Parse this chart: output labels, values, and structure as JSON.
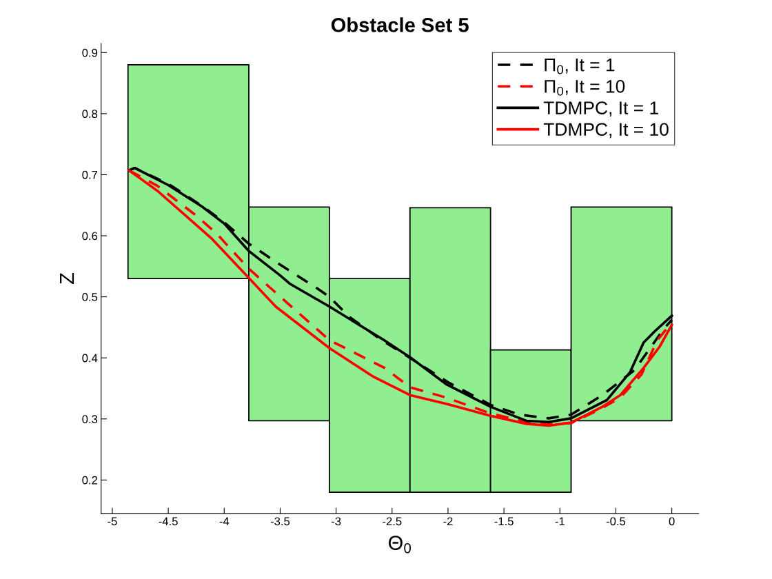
{
  "chart_data": {
    "type": "line",
    "title": "Obstacle Set 5",
    "xlabel": "Θ$_{0}$",
    "ylabel": "Z",
    "xlim": [
      -5.1,
      0.24
    ],
    "ylim": [
      0.145,
      0.915
    ],
    "xticks": [
      -5,
      -4.5,
      -4,
      -3.5,
      -3,
      -2.5,
      -2,
      -1.5,
      -1,
      -0.5,
      0
    ],
    "yticks": [
      0.2,
      0.3,
      0.4,
      0.5,
      0.6,
      0.7,
      0.8,
      0.9
    ],
    "grid": false,
    "legend": "top right",
    "series": [
      {
        "type": "area",
        "color": "#90ee90",
        "x": [
          -4.86,
          -4.86,
          -3.78,
          -3.78
        ],
        "values": [
          0.53,
          0.88,
          0.88,
          0.53
        ]
      },
      {
        "type": "area",
        "color": "#90ee90",
        "x": [
          -3.78,
          -3.78,
          -3.06,
          -3.06
        ],
        "values": [
          0.297,
          0.647,
          0.647,
          0.297
        ]
      },
      {
        "type": "area",
        "color": "#90ee90",
        "x": [
          -3.06,
          -3.06,
          -2.34,
          -2.34
        ],
        "values": [
          0.18,
          0.53,
          0.53,
          0.18
        ]
      },
      {
        "type": "area",
        "color": "#90ee90",
        "x": [
          -2.34,
          -2.34,
          -1.62,
          -1.62
        ],
        "values": [
          0.18,
          0.646,
          0.646,
          0.18
        ]
      },
      {
        "type": "area",
        "color": "#90ee90",
        "x": [
          -1.62,
          -1.62,
          -0.9,
          -0.9
        ],
        "values": [
          0.18,
          0.413,
          0.413,
          0.18
        ]
      },
      {
        "type": "area",
        "color": "#90ee90",
        "x": [
          -0.9,
          -0.9,
          0.0,
          0.0
        ],
        "values": [
          0.297,
          0.647,
          0.647,
          0.297
        ]
      },
      {
        "type": "line",
        "name": "Π$_{0}$, It = 1",
        "color": "#000000",
        "line_style": "dashed",
        "x": [
          -4.85,
          -4.8,
          -4.5,
          -4.2,
          -4.0,
          -3.78,
          -3.495,
          -3.17,
          -3.06,
          -2.88,
          -2.6,
          -2.34,
          -2.0,
          -1.62,
          -1.36,
          -1.1,
          -0.9,
          -0.62,
          -0.334,
          -0.17,
          -0.07,
          0.0
        ],
        "values": [
          0.707,
          0.711,
          0.685,
          0.649,
          0.622,
          0.587,
          0.552,
          0.514,
          0.5,
          0.467,
          0.43,
          0.4,
          0.36,
          0.323,
          0.307,
          0.301,
          0.307,
          0.339,
          0.38,
          0.422,
          0.448,
          0.462
        ]
      },
      {
        "type": "line",
        "name": "Π$_{0}$, It = 10",
        "color": "#ff0000",
        "line_style": "dashed",
        "x": [
          -4.85,
          -4.6,
          -4.25,
          -4.07,
          -3.78,
          -3.455,
          -3.06,
          -2.571,
          -2.34,
          -2.017,
          -1.62,
          -1.3,
          -1.1,
          -0.9,
          -0.64,
          -0.46,
          -0.27,
          -0.129,
          0.0
        ],
        "values": [
          0.707,
          0.682,
          0.633,
          0.604,
          0.546,
          0.493,
          0.429,
          0.384,
          0.352,
          0.335,
          0.309,
          0.295,
          0.292,
          0.293,
          0.316,
          0.335,
          0.373,
          0.429,
          0.458
        ]
      },
      {
        "type": "line",
        "name": "TDMPC, It = 1",
        "color": "#000000",
        "line_style": "solid",
        "x": [
          -4.85,
          -4.8,
          -4.5,
          -4.2,
          -4.0,
          -3.78,
          -3.5,
          -3.41,
          -3.06,
          -2.571,
          -2.34,
          -2.017,
          -1.62,
          -1.3,
          -1.1,
          -0.9,
          -0.58,
          -0.375,
          -0.252,
          -0.15,
          0.0
        ],
        "values": [
          0.707,
          0.711,
          0.683,
          0.648,
          0.62,
          0.575,
          0.535,
          0.521,
          0.484,
          0.429,
          0.401,
          0.357,
          0.32,
          0.297,
          0.295,
          0.301,
          0.331,
          0.376,
          0.425,
          0.444,
          0.469
        ]
      },
      {
        "type": "line",
        "name": "TDMPC, It = 10",
        "color": "#ff0000",
        "line_style": "solid",
        "x": [
          -4.85,
          -4.6,
          -4.32,
          -4.11,
          -3.78,
          -3.54,
          -3.06,
          -2.665,
          -2.34,
          -2.0,
          -1.62,
          -1.3,
          -1.1,
          -0.9,
          -0.62,
          -0.46,
          -0.25,
          -0.11,
          0.0
        ],
        "values": [
          0.707,
          0.674,
          0.629,
          0.595,
          0.531,
          0.484,
          0.416,
          0.369,
          0.339,
          0.324,
          0.305,
          0.292,
          0.289,
          0.294,
          0.32,
          0.339,
          0.384,
          0.418,
          0.454
        ]
      }
    ]
  }
}
